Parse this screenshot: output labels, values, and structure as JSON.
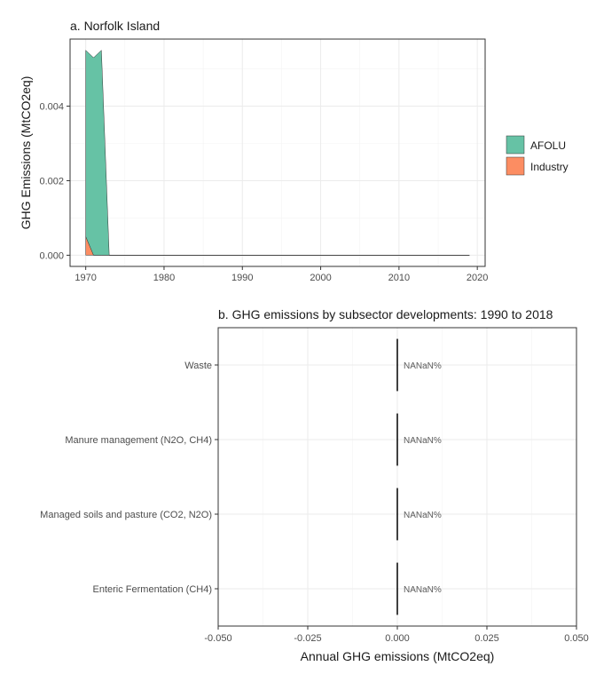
{
  "colors": {
    "afolu": "#66c2a5",
    "industry": "#fc8d62",
    "bar": "#000000"
  },
  "chart_data": [
    {
      "type": "area",
      "title": "a. Norfolk Island",
      "xlabel": "",
      "ylabel": "GHG Emissions (MtCO2eq)",
      "xlim": [
        1968,
        2021
      ],
      "ylim": [
        -0.0003,
        0.0058
      ],
      "x_ticks": [
        1970,
        1980,
        1990,
        2000,
        2010,
        2020
      ],
      "y_ticks": [
        0.0,
        0.002,
        0.004
      ],
      "y_tick_labels": [
        "0.000",
        "0.002",
        "0.004"
      ],
      "stacked": true,
      "grid": true,
      "legend_position": "right",
      "x": [
        1970,
        1971,
        1972,
        1973,
        1974,
        1980,
        1990,
        2000,
        2010,
        2019
      ],
      "series": [
        {
          "name": "Industry",
          "color": "#fc8d62",
          "values": [
            0.0005,
            0.0,
            0,
            0,
            0,
            0,
            0,
            0,
            0,
            0
          ]
        },
        {
          "name": "AFOLU",
          "color": "#66c2a5",
          "values": [
            0.005,
            0.0053,
            0.0055,
            0,
            0,
            0,
            0,
            0,
            0,
            0
          ]
        }
      ]
    },
    {
      "type": "bar",
      "orientation": "horizontal",
      "title": "b. GHG emissions by subsector developments: 1990 to 2018",
      "xlabel": "Annual GHG emissions (MtCO2eq)",
      "ylabel": "",
      "xlim": [
        -0.05,
        0.05
      ],
      "x_ticks": [
        -0.05,
        -0.025,
        0.0,
        0.025,
        0.05
      ],
      "x_tick_labels": [
        "-0.050",
        "-0.025",
        "0.000",
        "0.025",
        "0.050"
      ],
      "grid": true,
      "categories": [
        "Waste",
        "Manure management (N2O, CH4)",
        "Managed soils and pasture (CO2, N2O)",
        "Enteric Fermentation (CH4)"
      ],
      "values": [
        0,
        0,
        0,
        0
      ],
      "data_labels": [
        "NANaN%",
        "NANaN%",
        "NANaN%",
        "NANaN%"
      ]
    }
  ]
}
